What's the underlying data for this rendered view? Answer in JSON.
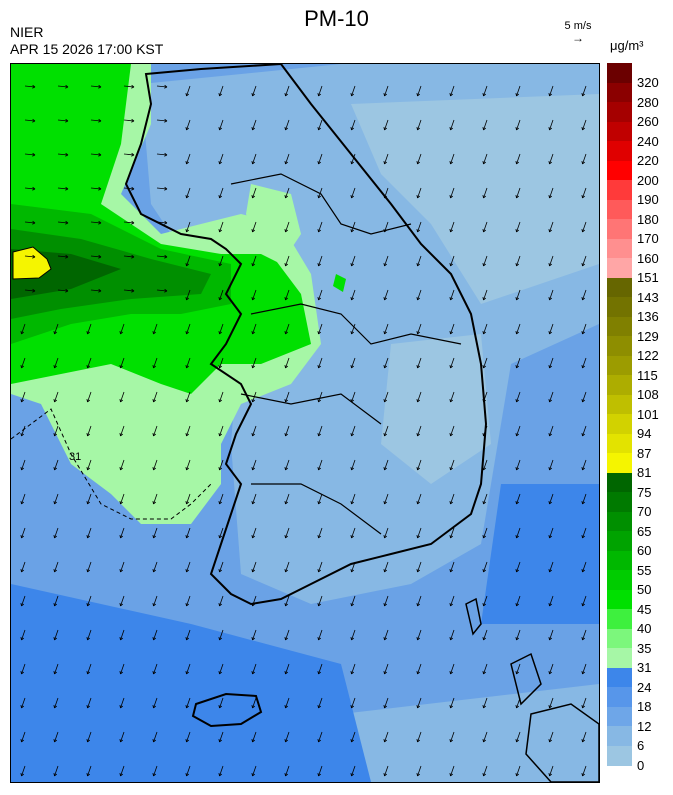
{
  "header": {
    "title": "PM-10",
    "org": "NIER",
    "datetime": "APR 15 2026 17:00 KST",
    "wind_ref_label": "5 m/s",
    "wind_ref_arrow": "→",
    "unit": "μg/m³"
  },
  "legend": [
    {
      "label": "320",
      "color": "#6b0000"
    },
    {
      "label": "280",
      "color": "#8b0000"
    },
    {
      "label": "260",
      "color": "#a50000"
    },
    {
      "label": "240",
      "color": "#c00000"
    },
    {
      "label": "220",
      "color": "#e00000"
    },
    {
      "label": "200",
      "color": "#ff0000"
    },
    {
      "label": "190",
      "color": "#ff3a3a"
    },
    {
      "label": "180",
      "color": "#ff5a5a"
    },
    {
      "label": "170",
      "color": "#ff7575"
    },
    {
      "label": "160",
      "color": "#ff8f8f"
    },
    {
      "label": "151",
      "color": "#ffa6a6"
    },
    {
      "label": "143",
      "color": "#666600"
    },
    {
      "label": "136",
      "color": "#737300"
    },
    {
      "label": "129",
      "color": "#808000"
    },
    {
      "label": "122",
      "color": "#8e8e00"
    },
    {
      "label": "115",
      "color": "#9c9c00"
    },
    {
      "label": "108",
      "color": "#adad00"
    },
    {
      "label": "101",
      "color": "#bfbf00"
    },
    {
      "label": "94",
      "color": "#d2d200"
    },
    {
      "label": "87",
      "color": "#e3e300"
    },
    {
      "label": "81",
      "color": "#f5f500"
    },
    {
      "label": "75",
      "color": "#006600"
    },
    {
      "label": "70",
      "color": "#007a00"
    },
    {
      "label": "65",
      "color": "#008f00"
    },
    {
      "label": "60",
      "color": "#00a300"
    },
    {
      "label": "55",
      "color": "#00b800"
    },
    {
      "label": "50",
      "color": "#00cc00"
    },
    {
      "label": "45",
      "color": "#00e000"
    },
    {
      "label": "40",
      "color": "#3ef03e"
    },
    {
      "label": "35",
      "color": "#7cf77c"
    },
    {
      "label": "31",
      "color": "#a6f7a6"
    },
    {
      "label": "24",
      "color": "#3d86ea"
    },
    {
      "label": "18",
      "color": "#5796ea"
    },
    {
      "label": "12",
      "color": "#6ea6e8"
    },
    {
      "label": "6",
      "color": "#87b8e4"
    },
    {
      "label": "0",
      "color": "#9cc6e2"
    }
  ],
  "map": {
    "contour_label": "31",
    "colors": {
      "sea_blue": "#6aa2e6",
      "dark_blue": "#3d86ea",
      "light_blue": "#87b8e4",
      "pale_blue": "#9cc6e2",
      "light_green": "#a6f7a6",
      "green": "#00e000",
      "mid_green": "#00b800",
      "dark_green": "#008f00",
      "darkest_green": "#006600",
      "yellow": "#f5f500",
      "coast": "#000000"
    }
  }
}
